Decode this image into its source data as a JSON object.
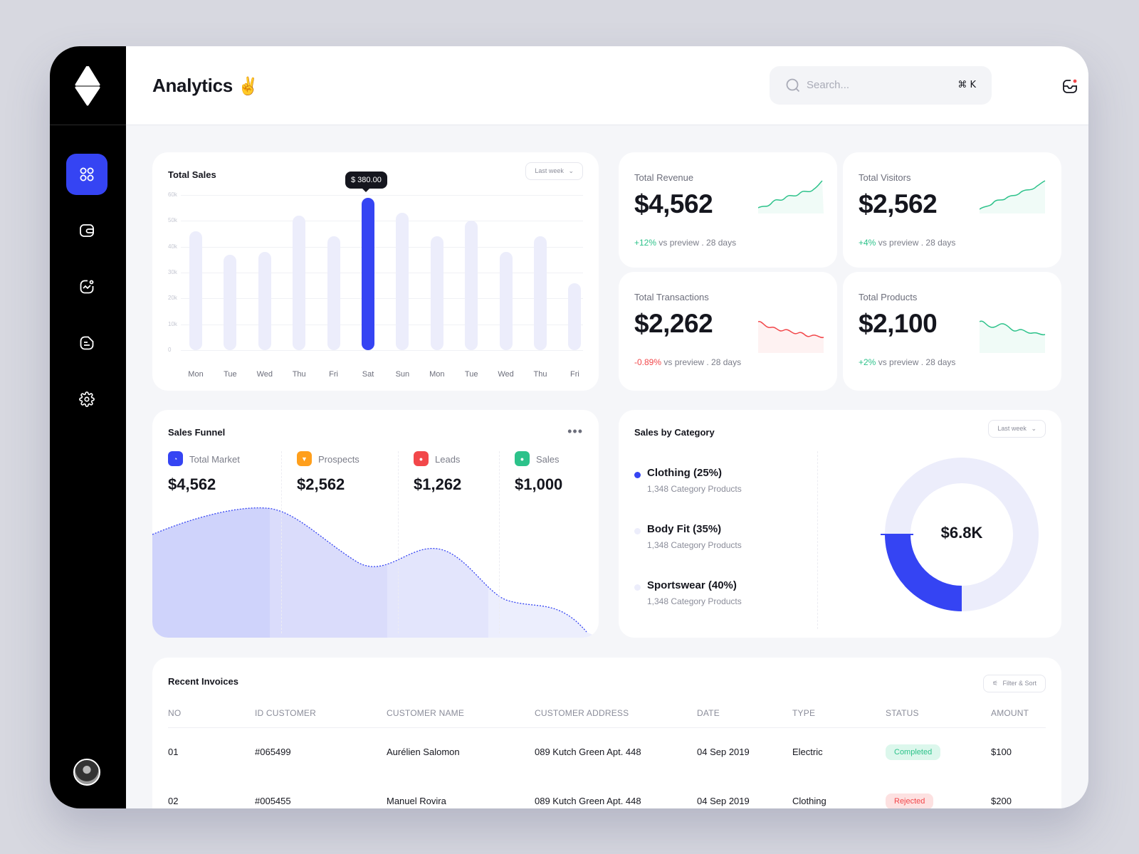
{
  "header": {
    "title": "Analytics",
    "title_emoji": "✌️",
    "search_placeholder": "Search...",
    "search_shortcut": "⌘ K"
  },
  "sidebar": {
    "items": [
      {
        "icon": "grid-icon",
        "active": true
      },
      {
        "icon": "wallet-icon",
        "active": false
      },
      {
        "icon": "chart-icon",
        "active": false
      },
      {
        "icon": "document-icon",
        "active": false
      },
      {
        "icon": "gear-icon",
        "active": false
      }
    ]
  },
  "total_sales": {
    "title": "Total Sales",
    "range": "Last week",
    "tooltip": "$ 380.00"
  },
  "chart_data": {
    "type": "bar",
    "y_ticks": [
      "60k",
      "50k",
      "40k",
      "30k",
      "20k",
      "10k",
      "0"
    ],
    "ylim": [
      0,
      60
    ],
    "categories": [
      "Mon",
      "Tue",
      "Wed",
      "Thu",
      "Fri",
      "Sat",
      "Sun",
      "Mon",
      "Tue",
      "Wed",
      "Thu",
      "Fri"
    ],
    "values": [
      46,
      37,
      38,
      52,
      44,
      59,
      53,
      44,
      50,
      38,
      44,
      26
    ],
    "highlight_index": 5,
    "colors": {
      "bar": "#ecedfb",
      "highlight": "#3544f3"
    }
  },
  "stats": [
    {
      "label": "Total Revenue",
      "value": "$4,562",
      "change": "+12%",
      "trend": "up",
      "foot": "vs preview . 28 days"
    },
    {
      "label": "Total Visitors",
      "value": "$2,562",
      "change": "+4%",
      "trend": "up",
      "foot": "vs preview . 28 days"
    },
    {
      "label": "Total Transactions",
      "value": "$2,262",
      "change": "-0.89%",
      "trend": "down",
      "foot": "vs preview . 28 days"
    },
    {
      "label": "Total Products",
      "value": "$2,100",
      "change": "+2%",
      "trend": "up",
      "foot": "vs preview . 28 days"
    }
  ],
  "sales_funnel": {
    "title": "Sales Funnel",
    "stages": [
      {
        "label": "Total Market",
        "value": "$4,562",
        "color": "#3544f3"
      },
      {
        "label": "Prospects",
        "value": "$2,562",
        "color": "#ff9f1c"
      },
      {
        "label": "Leads",
        "value": "$1,262",
        "color": "#f2474a"
      },
      {
        "label": "Sales",
        "value": "$1,000",
        "color": "#2cc28a"
      }
    ]
  },
  "sales_by_category": {
    "title": "Sales by Category",
    "range": "Last week",
    "total": "$6.8K",
    "items": [
      {
        "name": "Clothing (25%)",
        "sub": "1,348 Category Products",
        "color": "#3544f3",
        "share": 25
      },
      {
        "name": "Body Fit (35%)",
        "sub": "1,348 Category Products",
        "color": "#ecedfb",
        "share": 35
      },
      {
        "name": "Sportswear (40%)",
        "sub": "1,348 Category Products",
        "color": "#ecedfb",
        "share": 40
      }
    ]
  },
  "invoices": {
    "title": "Recent Invoices",
    "filter_label": "Filter & Sort",
    "columns": [
      "NO",
      "ID CUSTOMER",
      "CUSTOMER NAME",
      "CUSTOMER ADDRESS",
      "DATE",
      "TYPE",
      "STATUS",
      "AMOUNT"
    ],
    "rows": [
      {
        "no": "01",
        "id": "#065499",
        "name": "Aurélien Salomon",
        "address": "089 Kutch Green Apt. 448",
        "date": "04 Sep 2019",
        "type": "Electric",
        "status": "Completed",
        "amount": "$100"
      },
      {
        "no": "02",
        "id": "#005455",
        "name": "Manuel Rovira",
        "address": "089 Kutch Green Apt. 448",
        "date": "04 Sep 2019",
        "type": "Clothing",
        "status": "Rejected",
        "amount": "$200"
      }
    ]
  }
}
